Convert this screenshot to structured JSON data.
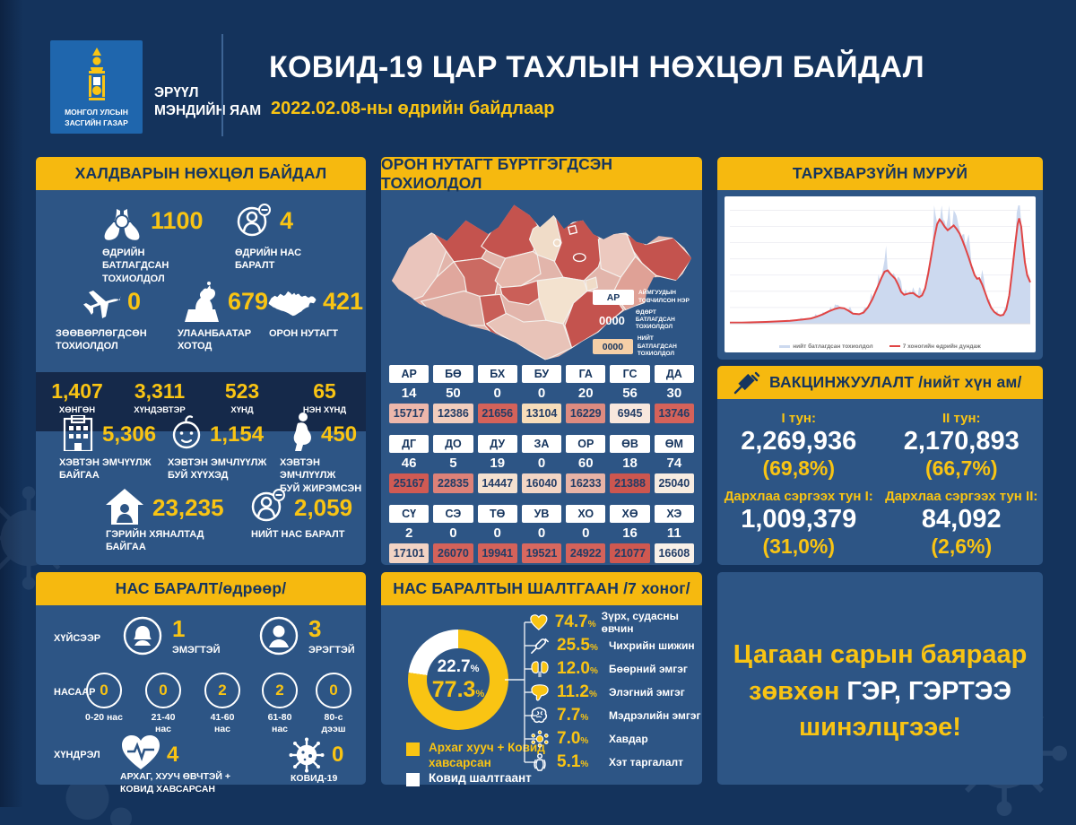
{
  "header": {
    "logo_text": "МОНГОЛ УЛСЫН\nЗАСГИЙН ГАЗАР",
    "ministry": "ЭРҮҮЛ\nМЭНДИЙН ЯАМ",
    "title": "КОВИД-19 ЦАР ТАХЛЫН НӨХЦӨЛ БАЙДАЛ",
    "date": "2022.02.08-ны өдрийн байдлаар"
  },
  "colors": {
    "background": "#14335c",
    "panel": "#2d5585",
    "panel_dark": "#15294a",
    "yellow": "#f6b90f",
    "number_yellow": "#f9c413",
    "chart_red": "#e04545",
    "chart_blue": "#ccd9ef",
    "logo_blue": "#1f66ad"
  },
  "infection_panel": {
    "title": "ХАЛДВАРЫН НӨХЦӨЛ БАЙДАЛ",
    "daily_confirmed": {
      "value": "1100",
      "label": "ӨДРИЙН\nБАТЛАГДСАН\nТОХИОЛДОЛ",
      "icon": "lungs-virus-icon"
    },
    "daily_deaths": {
      "value": "4",
      "label": "ӨДРИЙН НАС\nБАРАЛТ",
      "icon": "person-minus-icon"
    },
    "imported": {
      "value": "0",
      "label": "ЗӨӨВӨРЛӨГДСӨН\nТОХИОЛДОЛ",
      "icon": "airplane-icon"
    },
    "ulaanbaatar": {
      "value": "679",
      "label": "УЛААНБААТАР\nХОТОД",
      "icon": "monument-icon"
    },
    "regions": {
      "value": "421",
      "label": "ОРОН НУТАГТ",
      "icon": "mongolia-map-icon"
    },
    "severity": [
      {
        "value": "1,407",
        "label": "ХӨНГӨН"
      },
      {
        "value": "3,311",
        "label": "ХҮНДЭВТЭР"
      },
      {
        "value": "523",
        "label": "ХҮНД"
      },
      {
        "value": "65",
        "label": "НЭН ХҮНД"
      }
    ],
    "hospitalized": {
      "value": "5,306",
      "label": "ХЭВТЭН ЭМЧҮҮЛЖ\nБАЙГАА",
      "icon": "hospital-icon"
    },
    "hospitalized_children": {
      "value": "1,154",
      "label": "ХЭВТЭН ЭМЧЛҮҮЛЖ\nБУЙ ХҮҮХЭД",
      "icon": "baby-icon"
    },
    "hospitalized_pregnant": {
      "value": "450",
      "label": "ХЭВТЭН ЭМЧЛҮҮЛЖ\nБУЙ ЖИРЭМСЭН",
      "icon": "pregnant-icon"
    },
    "home_care": {
      "value": "23,235",
      "label": "ГЭРИЙН ХЯНАЛТАД\nБАЙГАА",
      "icon": "home-person-icon"
    },
    "total_deaths": {
      "value": "2,059",
      "label": "НИЙТ НАС БАРАЛТ",
      "icon": "person-minus-icon"
    }
  },
  "region_panel": {
    "title": "ОРОН НУТАГТ БҮРТГЭГДСЭН ТОХИОЛДОЛ",
    "legend": {
      "abbr": "АР",
      "abbr_label": "АЙМГУУДЫН\nТОВЧИЛСОН НЭР",
      "daily": "0000",
      "daily_label": "ӨДӨРТ БАТЛАГДСАН\nТОХИОЛДОЛ",
      "total": "0000",
      "total_label": "НИЙТ БАТЛАГДСАН\nТОХИОЛДОЛ"
    },
    "table": {
      "rows": [
        [
          {
            "code": "АР",
            "daily": "14",
            "total": "15717",
            "color": "#edb7ab"
          },
          {
            "code": "БӨ",
            "daily": "50",
            "total": "12386",
            "color": "#f2cdbd"
          },
          {
            "code": "БХ",
            "daily": "0",
            "total": "21656",
            "color": "#d4625a"
          },
          {
            "code": "БУ",
            "daily": "0",
            "total": "13104",
            "color": "#f7ddba"
          },
          {
            "code": "ГА",
            "daily": "20",
            "total": "16229",
            "color": "#dd8b80"
          },
          {
            "code": "ГС",
            "daily": "56",
            "total": "6945",
            "color": "#f8e7dd"
          },
          {
            "code": "ДА",
            "daily": "30",
            "total": "13746",
            "color": "#d4625a"
          }
        ],
        [
          {
            "code": "ДГ",
            "daily": "46",
            "total": "25167",
            "color": "#d05a53"
          },
          {
            "code": "ДО",
            "daily": "5",
            "total": "22835",
            "color": "#dd8178"
          },
          {
            "code": "ДУ",
            "daily": "19",
            "total": "14447",
            "color": "#f5e1d0"
          },
          {
            "code": "ЗА",
            "daily": "0",
            "total": "16040",
            "color": "#f2d5c5"
          },
          {
            "code": "ОР",
            "daily": "60",
            "total": "16233",
            "color": "#e8b3a6"
          },
          {
            "code": "ӨВ",
            "daily": "18",
            "total": "21388",
            "color": "#cc564f"
          },
          {
            "code": "ӨМ",
            "daily": "74",
            "total": "25040",
            "color": "#f7ece1"
          }
        ],
        [
          {
            "code": "СҮ",
            "daily": "2",
            "total": "17101",
            "color": "#f2d3c4"
          },
          {
            "code": "СЭ",
            "daily": "0",
            "total": "26070",
            "color": "#d4625a"
          },
          {
            "code": "ТӨ",
            "daily": "0",
            "total": "19941",
            "color": "#d4625a"
          },
          {
            "code": "УВ",
            "daily": "0",
            "total": "19521",
            "color": "#d8685f"
          },
          {
            "code": "ХО",
            "daily": "0",
            "total": "24922",
            "color": "#d4625a"
          },
          {
            "code": "ХӨ",
            "daily": "16",
            "total": "21077",
            "color": "#cf5850"
          },
          {
            "code": "ХЭ",
            "daily": "11",
            "total": "16608",
            "color": "#f8f0e8"
          }
        ]
      ]
    },
    "map_fills": {
      "far_west": "#eac5bc",
      "uvs": "#c4534e",
      "khovd": "#e0a79d",
      "zavkhan": "#cb6a62",
      "khuvsgul": "#c4534e",
      "north_center_cream": "#f0dcc8",
      "arkhangai": "#e6b8ac",
      "selenge_cluster": "#c4534e",
      "khentii": "#ecc9bf",
      "dornod": "#c4534e",
      "sukhbaatar": "#dfa196",
      "gobi_altai": "#e0b3a9",
      "bayankhongor": "#c85e57",
      "uvurkhangai": "#ca5f58",
      "south_cream": "#f3e2cf",
      "umnugobi": "#e8c3b8",
      "dornogobi": "#c4534e",
      "govisumber": "#f0dcc8",
      "ub": "#b14a45"
    }
  },
  "curve_panel": {
    "title": "ТАРХВАРЗҮЙН МУРУЙ"
  },
  "vaccine_panel": {
    "title": "ВАКЦИНЖУУЛАЛТ /нийт хүн ам/",
    "doses": [
      {
        "label": "I тун:",
        "value": "2,269,936",
        "pct": "(69,8%)"
      },
      {
        "label": "II тун:",
        "value": "2,170,893",
        "pct": "(66,7%)"
      },
      {
        "label": "Дархлаа сэргээх тун I:",
        "value": "1,009,379",
        "pct": "(31,0%)"
      },
      {
        "label": "Дархлаа сэргээх тун II:",
        "value": "84,092",
        "pct": "(2,6%)"
      }
    ]
  },
  "death_panel": {
    "title": "НАС БАРАЛТ/өдрөөр/",
    "gender_label": "ХҮЙСЭЭР",
    "female": {
      "value": "1",
      "label": "ЭМЭГТЭЙ",
      "icon": "female-icon"
    },
    "male": {
      "value": "3",
      "label": "ЭРЭГТЭЙ",
      "icon": "male-icon"
    },
    "age_label": "НАСААР",
    "ages": [
      {
        "value": "0",
        "label": "0-20 нас"
      },
      {
        "value": "0",
        "label": "21-40\nнас"
      },
      {
        "value": "2",
        "label": "41-60\nнас"
      },
      {
        "value": "2",
        "label": "61-80\nнас"
      },
      {
        "value": "0",
        "label": "80-с\nдээш"
      }
    ],
    "complication_label": "ХҮНДРЭЛ",
    "chronic": {
      "value": "4",
      "label": "АРХАГ, ХУУЧ ӨВЧТЭЙ +\nКОВИД ХАВСАРСАН",
      "icon": "heart-pulse-icon"
    },
    "covid_only": {
      "value": "0",
      "label": "КОВИД-19",
      "icon": "virus-icon"
    }
  },
  "cause_panel": {
    "title": "НАС БАРАЛТЫН ШАЛТГААН /7 хоног/",
    "donut_top": "22.7",
    "donut_bottom": "77.3",
    "legend": [
      {
        "label": "Архаг хууч + Ковид\nхавсарсан",
        "color": "#f9c413"
      },
      {
        "label": "Ковид шалтгаант",
        "color": "#ffffff"
      }
    ],
    "causes": [
      {
        "pct": "74.7",
        "label": "Зүрх, судасны өвчин",
        "icon": "heart-icon"
      },
      {
        "pct": "25.5",
        "label": "Чихрийн шижин",
        "icon": "insulin-pen-icon"
      },
      {
        "pct": "12.0",
        "label": "Бөөрний эмгэг",
        "icon": "kidney-icon"
      },
      {
        "pct": "11.2",
        "label": "Элэгний эмгэг",
        "icon": "liver-icon"
      },
      {
        "pct": "7.7",
        "label": "Мэдрэлийн эмгэг",
        "icon": "brain-icon"
      },
      {
        "pct": "7.0",
        "label": "Хавдар",
        "icon": "cancer-icon"
      },
      {
        "pct": "5.1",
        "label": "Хэт таргалалт",
        "icon": "body-icon"
      }
    ]
  },
  "message_panel": {
    "line1": "Цагаан сарын баяраар",
    "line2_yellow": "зөвхөн ",
    "line2_white": "ГЭР, ГЭРТЭЭ",
    "line3": "шинэлцгээе!"
  },
  "chart_data": [
    {
      "type": "area",
      "title": "ТАРХВАРЗҮЙН МУРУЙ",
      "xlabel": "",
      "ylabel": "",
      "gridlines": 7,
      "legend_position": "bottom",
      "series": [
        {
          "name": "нийт батлагдсан тохиолдол",
          "type": "area",
          "color": "#ccd9ef",
          "note": "daily confirmed cases, jagged envelope around the average line"
        },
        {
          "name": "7 хоногийн өдрийн дундаж",
          "type": "line",
          "color": "#e04545",
          "points": [
            [
              0,
              1
            ],
            [
              4,
              1
            ],
            [
              8,
              1.2
            ],
            [
              12,
              1.5
            ],
            [
              16,
              2
            ],
            [
              20,
              2.5
            ],
            [
              24,
              3.5
            ],
            [
              27,
              4.5
            ],
            [
              29,
              6
            ],
            [
              31,
              8
            ],
            [
              33,
              10.5
            ],
            [
              35,
              12.5
            ],
            [
              36.5,
              13.5
            ],
            [
              38,
              13
            ],
            [
              39.5,
              11
            ],
            [
              41,
              8.5
            ],
            [
              43,
              8
            ],
            [
              44.5,
              9.5
            ],
            [
              46,
              14
            ],
            [
              47.5,
              21
            ],
            [
              49,
              30
            ],
            [
              50.5,
              39
            ],
            [
              51.5,
              44
            ],
            [
              52.5,
              45
            ],
            [
              53.5,
              42
            ],
            [
              55,
              38
            ],
            [
              56,
              33
            ],
            [
              57,
              27
            ],
            [
              58,
              24.5
            ],
            [
              59.5,
              25.5
            ],
            [
              61,
              26
            ],
            [
              62,
              24
            ],
            [
              63,
              22.5
            ],
            [
              64,
              24
            ],
            [
              65,
              30
            ],
            [
              66,
              42
            ],
            [
              67,
              57
            ],
            [
              68,
              72
            ],
            [
              69,
              84
            ],
            [
              69.8,
              88
            ],
            [
              70.5,
              86
            ],
            [
              71.5,
              82
            ],
            [
              72.5,
              79
            ],
            [
              73.5,
              81
            ],
            [
              74.5,
              83
            ],
            [
              75.5,
              80
            ],
            [
              76.5,
              76
            ],
            [
              77.5,
              70
            ],
            [
              78.5,
              63
            ],
            [
              79.5,
              56
            ],
            [
              80.5,
              48
            ],
            [
              81.5,
              41
            ],
            [
              82.3,
              38
            ],
            [
              83,
              38.5
            ],
            [
              84,
              33
            ],
            [
              85,
              26
            ],
            [
              86,
              19
            ],
            [
              87,
              13.5
            ],
            [
              88,
              10
            ],
            [
              89,
              8
            ],
            [
              90,
              7
            ],
            [
              91,
              7.5
            ],
            [
              92,
              12
            ],
            [
              93,
              24
            ],
            [
              94,
              45
            ],
            [
              95,
              68
            ],
            [
              95.8,
              84
            ],
            [
              96.3,
              89
            ],
            [
              97,
              82
            ],
            [
              97.6,
              66
            ],
            [
              98.2,
              52
            ],
            [
              99,
              41
            ],
            [
              100,
              35
            ]
          ]
        }
      ]
    },
    {
      "type": "pie",
      "title": "НАС БАРАЛТЫН ШАЛТГААН /7 хоног/",
      "slices": [
        {
          "label": "Архаг хууч + Ковид хавсарсан",
          "value": 77.3,
          "color": "#f9c413"
        },
        {
          "label": "Ковид шалтгаант",
          "value": 22.7,
          "color": "#ffffff"
        }
      ]
    }
  ]
}
